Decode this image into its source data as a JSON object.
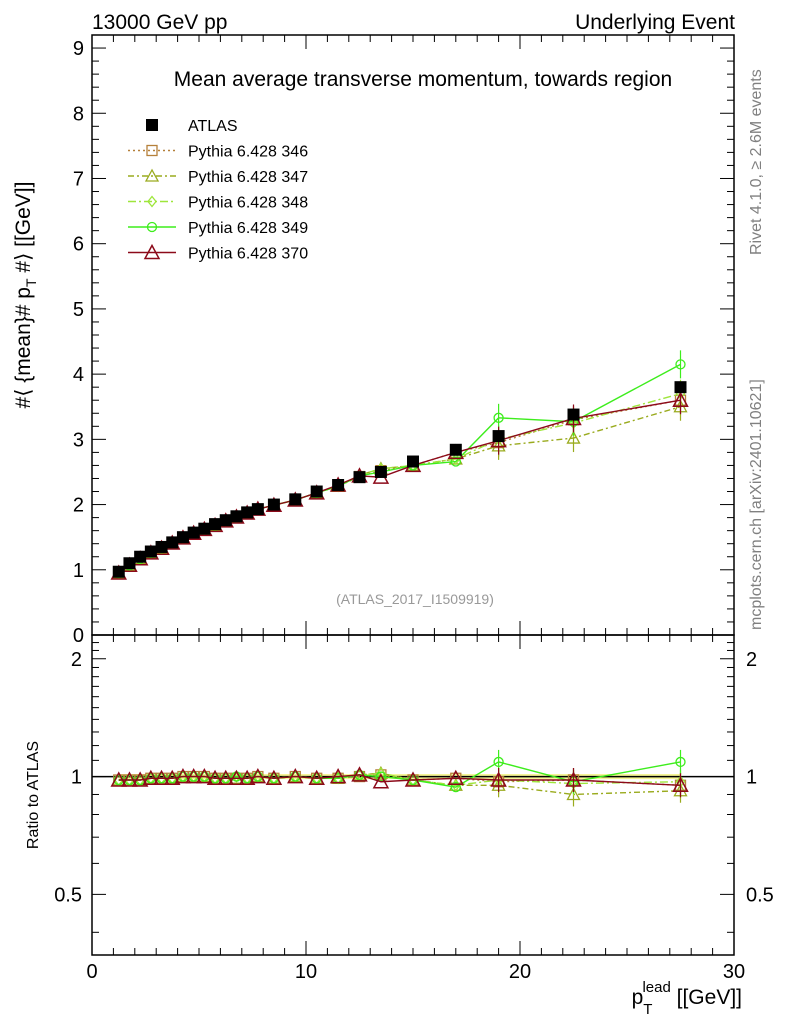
{
  "header": {
    "left": "13000 GeV pp",
    "right": "Underlying Event"
  },
  "side_labels": {
    "rivet": "Rivet 4.1.0, ≥ 2.6M events",
    "mcplots": "mcplots.cern.ch [arXiv:2401.10621]"
  },
  "colors": {
    "atlas": "#000000",
    "p346": "#b5803a",
    "p347": "#9aab1e",
    "p348": "#9ee63b",
    "p349": "#3ded1c",
    "p370": "#8c0a1a",
    "band": "#f5f595"
  },
  "chart_data": [
    {
      "type": "line",
      "title": "Mean average transverse momentum, towards region",
      "watermark": "(ATLAS_2017_I1509919)",
      "xlabel": "p_T^lead [[GeV]]",
      "ylabel": "#⟨ {mean}# p_T #⟩ [[GeV]]",
      "xlim": [
        0,
        30
      ],
      "ylim": [
        0,
        9.2
      ],
      "yticks": [
        "0",
        "1",
        "2",
        "3",
        "4",
        "5",
        "6",
        "7",
        "8",
        "9"
      ],
      "x": [
        1.25,
        1.75,
        2.25,
        2.75,
        3.25,
        3.75,
        4.25,
        4.75,
        5.25,
        5.75,
        6.25,
        6.75,
        7.25,
        7.75,
        8.5,
        9.5,
        10.5,
        11.5,
        12.5,
        13.5,
        15,
        17,
        19,
        22.5,
        27.5
      ],
      "series": [
        {
          "name": "ATLAS",
          "values": [
            0.97,
            1.1,
            1.2,
            1.28,
            1.35,
            1.42,
            1.5,
            1.57,
            1.63,
            1.7,
            1.76,
            1.82,
            1.88,
            1.93,
            2.0,
            2.08,
            2.2,
            2.3,
            2.42,
            2.5,
            2.66,
            2.84,
            3.05,
            3.38,
            3.8
          ]
        },
        {
          "name": "Pythia 6.428 346",
          "values": [
            0.95,
            1.07,
            1.17,
            1.26,
            1.33,
            1.41,
            1.49,
            1.56,
            1.62,
            1.68,
            1.75,
            1.81,
            1.87,
            1.93,
            1.99,
            2.07,
            2.18,
            2.28,
            2.43,
            2.52,
            2.6,
            2.8,
            2.95,
            3.3,
            3.6
          ]
        },
        {
          "name": "Pythia 6.428 347",
          "values": [
            0.95,
            1.07,
            1.17,
            1.26,
            1.33,
            1.41,
            1.49,
            1.56,
            1.62,
            1.68,
            1.75,
            1.81,
            1.87,
            1.93,
            1.99,
            2.07,
            2.18,
            2.28,
            2.45,
            2.55,
            2.6,
            2.7,
            2.9,
            3.02,
            3.5
          ]
        },
        {
          "name": "Pythia 6.428 348",
          "values": [
            0.95,
            1.07,
            1.17,
            1.26,
            1.33,
            1.41,
            1.49,
            1.56,
            1.62,
            1.68,
            1.75,
            1.81,
            1.87,
            1.93,
            1.99,
            2.07,
            2.18,
            2.28,
            2.45,
            2.55,
            2.6,
            2.7,
            3.0,
            3.25,
            3.7
          ]
        },
        {
          "name": "Pythia 6.428 349",
          "values": [
            0.95,
            1.07,
            1.17,
            1.26,
            1.33,
            1.41,
            1.49,
            1.56,
            1.62,
            1.68,
            1.75,
            1.81,
            1.87,
            1.93,
            1.99,
            2.07,
            2.18,
            2.28,
            2.44,
            2.5,
            2.6,
            2.66,
            3.33,
            3.27,
            4.15
          ]
        },
        {
          "name": "Pythia 6.428 370",
          "values": [
            0.95,
            1.07,
            1.17,
            1.26,
            1.33,
            1.41,
            1.49,
            1.56,
            1.62,
            1.68,
            1.75,
            1.81,
            1.87,
            1.93,
            1.99,
            2.07,
            2.18,
            2.3,
            2.44,
            2.42,
            2.6,
            2.8,
            2.98,
            3.32,
            3.6
          ]
        }
      ]
    },
    {
      "type": "line",
      "title": "",
      "xlabel": "p_T^lead [[GeV]]",
      "ylabel": "Ratio to ATLAS",
      "xlim": [
        0,
        30
      ],
      "ylim": [
        0.35,
        2.3
      ],
      "yscale": "log",
      "xticks": [
        "0",
        "10",
        "20",
        "30"
      ],
      "yticks": [
        "0.5",
        "1",
        "2"
      ],
      "x": [
        1.25,
        1.75,
        2.25,
        2.75,
        3.25,
        3.75,
        4.25,
        4.75,
        5.25,
        5.75,
        6.25,
        6.75,
        7.25,
        7.75,
        8.5,
        9.5,
        10.5,
        11.5,
        12.5,
        13.5,
        15,
        17,
        19,
        22.5,
        27.5
      ],
      "series": [
        {
          "name": "Pythia 6.428 346",
          "values": [
            0.98,
            0.98,
            0.98,
            0.99,
            0.99,
            0.99,
            1.0,
            1.0,
            1.0,
            0.99,
            0.99,
            0.99,
            0.99,
            1.0,
            0.99,
            1.0,
            0.99,
            0.99,
            1.0,
            1.01,
            0.98,
            0.99,
            0.97,
            0.98,
            0.95
          ]
        },
        {
          "name": "Pythia 6.428 347",
          "values": [
            0.98,
            0.98,
            0.98,
            0.99,
            0.99,
            0.99,
            1.0,
            1.0,
            1.0,
            0.99,
            0.99,
            0.99,
            0.99,
            1.0,
            0.99,
            1.0,
            0.99,
            0.99,
            1.01,
            1.02,
            0.98,
            0.95,
            0.95,
            0.9,
            0.92
          ]
        },
        {
          "name": "Pythia 6.428 348",
          "values": [
            0.98,
            0.98,
            0.98,
            0.99,
            0.99,
            0.99,
            1.0,
            1.0,
            1.0,
            0.99,
            0.99,
            1.0,
            0.99,
            1.0,
            0.99,
            1.0,
            0.99,
            0.99,
            1.01,
            1.02,
            0.98,
            0.95,
            0.98,
            0.96,
            0.97
          ]
        },
        {
          "name": "Pythia 6.428 349",
          "values": [
            0.98,
            0.98,
            0.98,
            0.99,
            0.99,
            0.99,
            1.0,
            1.0,
            1.0,
            0.99,
            0.99,
            1.0,
            0.99,
            1.0,
            0.99,
            1.0,
            0.99,
            0.99,
            1.01,
            1.0,
            0.98,
            0.94,
            1.09,
            0.97,
            1.09
          ]
        },
        {
          "name": "Pythia 6.428 370",
          "values": [
            0.98,
            0.98,
            0.98,
            0.99,
            0.99,
            0.99,
            1.0,
            1.0,
            1.0,
            0.99,
            0.99,
            0.99,
            0.99,
            1.0,
            0.99,
            1.0,
            0.99,
            1.0,
            1.01,
            0.97,
            0.98,
            0.99,
            0.98,
            0.98,
            0.95
          ]
        }
      ]
    }
  ]
}
